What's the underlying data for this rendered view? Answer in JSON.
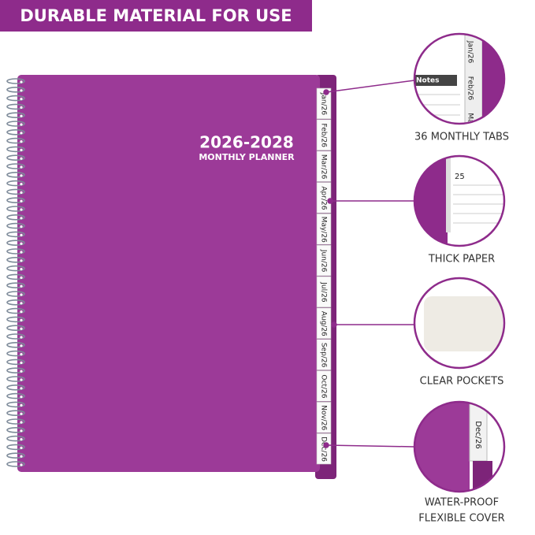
{
  "banner": "DURABLE MATERIAL FOR USE",
  "cover": {
    "title": "2026-2028",
    "subtitle": "MONTHLY PLANNER"
  },
  "tabs": [
    "Jan/26",
    "Feb/26",
    "Mar/26",
    "Apr/26",
    "May/26",
    "Jun/26",
    "Jul/26",
    "Aug/26",
    "Sep/26",
    "Oct/26",
    "Nov/26",
    "Dec/26"
  ],
  "features": [
    {
      "label": [
        "36 MONTHLY TABS"
      ],
      "inset": [
        "Notes",
        "Jan/26",
        "Feb/26",
        "Ma"
      ]
    },
    {
      "label": [
        "THICK PAPER"
      ],
      "inset": [
        "25"
      ]
    },
    {
      "label": [
        "CLEAR POCKETS"
      ],
      "inset": []
    },
    {
      "label": [
        "WATER-PROOF",
        "FLEXIBLE COVER"
      ],
      "inset": [
        "Dec/26"
      ]
    }
  ]
}
